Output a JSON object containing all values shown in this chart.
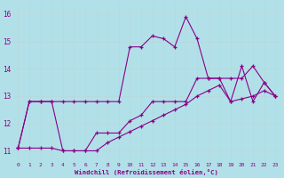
{
  "xlabel": "Windchill (Refroidissement éolien,°C)",
  "bg_color": "#b2e0e8",
  "grid_color": "#b8d8dc",
  "line_color": "#880088",
  "line1_x": [
    0,
    1,
    2,
    3,
    4,
    5,
    6,
    7,
    8,
    9,
    10,
    11,
    12,
    13,
    14,
    15,
    16,
    17,
    18,
    19,
    20,
    21,
    22,
    23
  ],
  "line1_y": [
    11.1,
    12.8,
    12.8,
    12.8,
    12.8,
    12.8,
    12.8,
    12.8,
    12.8,
    12.8,
    14.8,
    14.8,
    15.2,
    15.1,
    14.8,
    15.9,
    15.1,
    13.65,
    13.65,
    13.65,
    13.65,
    14.1,
    13.5,
    13.0
  ],
  "line2_x": [
    0,
    1,
    2,
    3,
    4,
    5,
    6,
    7,
    8,
    9,
    10,
    11,
    12,
    13,
    14,
    15,
    16,
    17,
    18,
    19,
    20,
    21,
    22,
    23
  ],
  "line2_y": [
    11.1,
    12.8,
    12.8,
    12.8,
    11.0,
    11.0,
    11.0,
    11.65,
    11.65,
    11.65,
    12.1,
    12.3,
    12.8,
    12.8,
    12.8,
    12.8,
    13.65,
    13.65,
    13.65,
    12.8,
    14.1,
    12.8,
    13.5,
    13.0
  ],
  "line3_x": [
    0,
    1,
    2,
    3,
    4,
    5,
    6,
    7,
    8,
    9,
    10,
    11,
    12,
    13,
    14,
    15,
    16,
    17,
    18,
    19,
    20,
    21,
    22,
    23
  ],
  "line3_y": [
    11.1,
    11.1,
    11.1,
    11.1,
    11.0,
    11.0,
    11.0,
    11.0,
    11.3,
    11.5,
    11.7,
    11.9,
    12.1,
    12.3,
    12.5,
    12.7,
    13.0,
    13.2,
    13.4,
    12.8,
    12.9,
    13.0,
    13.2,
    13.0
  ],
  "xlim": [
    -0.5,
    23.5
  ],
  "ylim": [
    10.6,
    16.4
  ],
  "yticks": [
    11,
    12,
    13,
    14,
    15,
    16
  ],
  "xticks": [
    0,
    1,
    2,
    3,
    4,
    5,
    6,
    7,
    8,
    9,
    10,
    11,
    12,
    13,
    14,
    15,
    16,
    17,
    18,
    19,
    20,
    21,
    22,
    23
  ]
}
